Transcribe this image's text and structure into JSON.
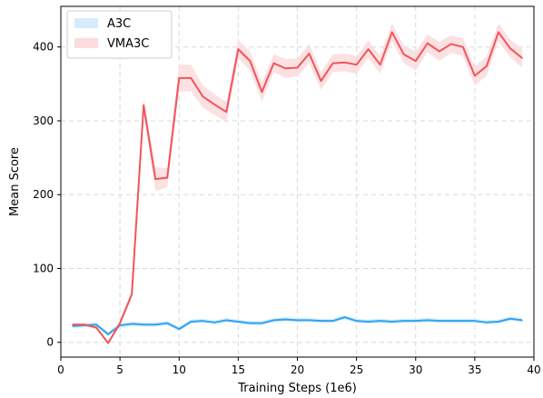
{
  "chart_data": {
    "type": "line",
    "xlabel": "Training Steps (1e6)",
    "ylabel": "Mean Score",
    "xlim": [
      0,
      40
    ],
    "ylim": [
      -20,
      455
    ],
    "xticks": [
      0,
      5,
      10,
      15,
      20,
      25,
      30,
      35,
      40
    ],
    "yticks": [
      0,
      100,
      200,
      300,
      400
    ],
    "grid": true,
    "legend_position": "top-left",
    "series": [
      {
        "name": "A3C",
        "color": "#2ea3f2",
        "band_color": "#d6ecfb",
        "x": [
          1,
          2,
          3,
          4,
          5,
          6,
          7,
          8,
          9,
          10,
          11,
          12,
          13,
          14,
          15,
          16,
          17,
          18,
          19,
          20,
          21,
          22,
          23,
          24,
          25,
          26,
          27,
          28,
          29,
          30,
          31,
          32,
          33,
          34,
          35,
          36,
          37,
          38,
          39
        ],
        "values": [
          22,
          23,
          24,
          11,
          23,
          25,
          24,
          24,
          26,
          18,
          28,
          29,
          27,
          30,
          28,
          26,
          26,
          30,
          31,
          30,
          30,
          29,
          29,
          34,
          29,
          28,
          29,
          28,
          29,
          29,
          30,
          29,
          29,
          29,
          29,
          27,
          28,
          32,
          30
        ],
        "lower": [
          19,
          20,
          21,
          8,
          20,
          22,
          21,
          21,
          23,
          15,
          25,
          26,
          24,
          27,
          25,
          23,
          23,
          27,
          28,
          27,
          27,
          26,
          26,
          31,
          26,
          25,
          26,
          25,
          26,
          26,
          27,
          26,
          26,
          26,
          26,
          24,
          25,
          29,
          27
        ],
        "upper": [
          25,
          26,
          27,
          14,
          26,
          28,
          27,
          27,
          29,
          21,
          31,
          32,
          30,
          33,
          31,
          29,
          29,
          33,
          34,
          33,
          33,
          32,
          32,
          37,
          32,
          31,
          32,
          31,
          32,
          32,
          33,
          32,
          32,
          32,
          32,
          30,
          31,
          35,
          33
        ]
      },
      {
        "name": "VMA3C",
        "color": "#f2545b",
        "band_color": "#fcdcdd",
        "x": [
          1,
          2,
          3,
          4,
          5,
          6,
          7,
          8,
          9,
          10,
          11,
          12,
          13,
          14,
          15,
          16,
          17,
          18,
          19,
          20,
          21,
          22,
          23,
          24,
          25,
          26,
          27,
          28,
          29,
          30,
          31,
          32,
          33,
          34,
          35,
          36,
          37,
          38,
          39
        ],
        "values": [
          24,
          24,
          20,
          -1,
          26,
          65,
          321,
          221,
          223,
          358,
          358,
          333,
          322,
          312,
          397,
          381,
          339,
          378,
          371,
          372,
          391,
          354,
          378,
          379,
          376,
          397,
          376,
          420,
          390,
          381,
          405,
          394,
          404,
          400,
          361,
          374,
          420,
          398,
          385
        ],
        "lower": [
          22,
          22,
          18,
          -3,
          22,
          60,
          310,
          205,
          210,
          340,
          340,
          318,
          308,
          298,
          385,
          368,
          326,
          366,
          358,
          360,
          378,
          342,
          366,
          367,
          364,
          385,
          364,
          408,
          378,
          368,
          393,
          381,
          392,
          388,
          348,
          361,
          408,
          386,
          372
        ],
        "upper": [
          26,
          26,
          22,
          1,
          30,
          70,
          332,
          237,
          236,
          376,
          376,
          348,
          336,
          326,
          409,
          394,
          352,
          390,
          384,
          384,
          404,
          366,
          390,
          391,
          388,
          409,
          388,
          432,
          402,
          394,
          417,
          407,
          416,
          412,
          374,
          387,
          432,
          410,
          398
        ]
      }
    ]
  }
}
